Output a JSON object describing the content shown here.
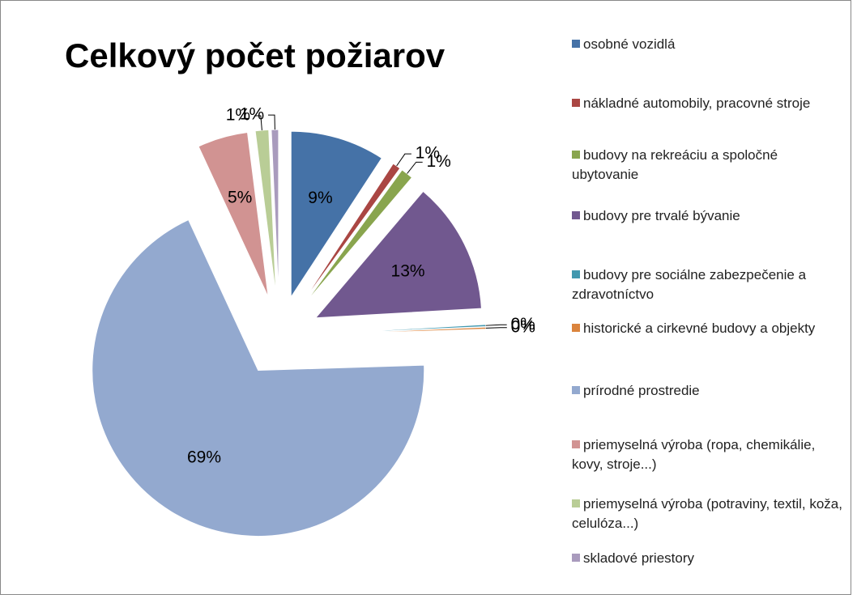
{
  "chart_data": {
    "type": "pie",
    "title": "Celkový počet požiarov",
    "categories": [
      "osobné vozidlá",
      "nákladné automobily, pracovné stroje",
      "budovy na rekreáciu a spoločné ubytovanie",
      "budovy pre trvalé bývanie",
      "budovy pre sociálne zabezpečenie a zdravotníctvo",
      "historické a cirkevné budovy a objekty",
      "prírodné prostredie",
      "priemyselná výroba  (ropa, chemikálie, kovy, stroje...)",
      "priemyselná výroba (potraviny, textil, koža, celulóza...)",
      "skladové priestory"
    ],
    "values": [
      9.2,
      0.8,
      1.2,
      12.9,
      0.2,
      0.2,
      68.6,
      4.9,
      1.3,
      0.7
    ],
    "value_labels": [
      "9%",
      "1%",
      "1%",
      "13%",
      "0%",
      "0%",
      "69%",
      "5%",
      "1%",
      "1%"
    ],
    "colors": [
      "#4572a7",
      "#aa4643",
      "#89a54e",
      "#71588f",
      "#4198af",
      "#db843d",
      "#93a9cf",
      "#d19392",
      "#b9cd96",
      "#a99bbd"
    ],
    "legend": "right"
  }
}
